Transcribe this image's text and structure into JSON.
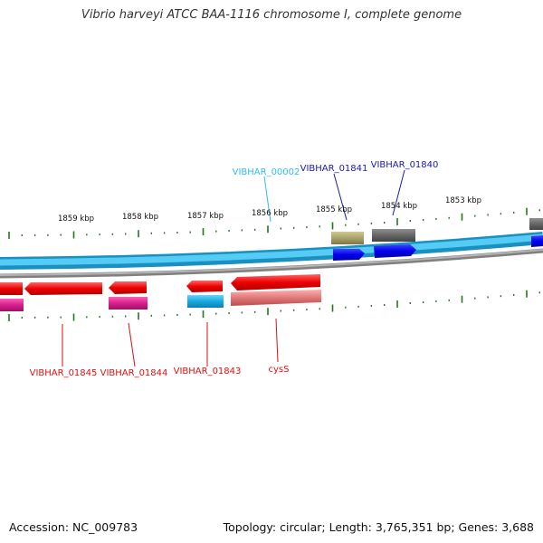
{
  "title": "Vibrio harveyi ATCC BAA-1116 chromosome I, complete genome",
  "footer": {
    "accession": "Accession: NC_009783",
    "summary": "Topology: circular; Length: 3,765,351 bp; Genes: 3,688"
  },
  "kbp_labels": [
    "1859 kbp",
    "1858 kbp",
    "1857 kbp",
    "1856 kbp",
    "1855 kbp",
    "1854 kbp",
    "1853 kbp"
  ],
  "forward_genes": [
    {
      "name": "VIBHAR_00002",
      "color": "#33bbee"
    },
    {
      "name": "VIBHAR_01841",
      "color": "#1a1aaa"
    },
    {
      "name": "VIBHAR_01840",
      "color": "#1a1aaa"
    }
  ],
  "reverse_genes": [
    {
      "name": "VIBHAR_01845",
      "color": "#dd1111"
    },
    {
      "name": "VIBHAR_01844",
      "color": "#dd1111"
    },
    {
      "name": "VIBHAR_01843",
      "color": "#dd1111"
    },
    {
      "name": "cysS",
      "color": "#dd1111"
    }
  ],
  "colors": {
    "forward_backbone": "#22aadd",
    "reverse_backbone": "#808080",
    "cds_forward": "#0000ee",
    "cds_reverse": "#ee0000",
    "gene_olive": "#a9a26a",
    "gene_gray": "#666666",
    "gene_magenta": "#d6208c",
    "gene_cyan": "#18a8e0",
    "gene_pink": "#e07878",
    "tick": "#227722"
  }
}
